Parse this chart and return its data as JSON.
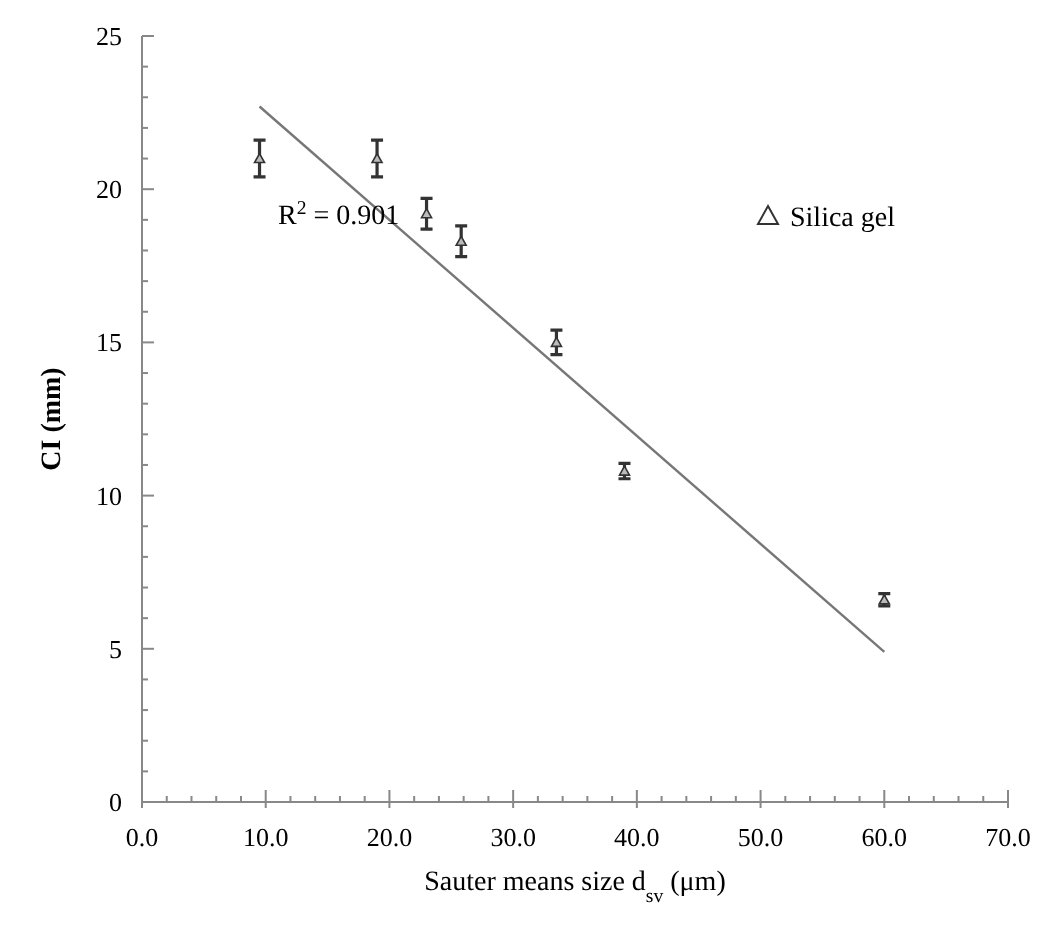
{
  "chart_data": {
    "type": "scatter",
    "xlabel": "Sauter means size d$_{sv}$ (μm)",
    "ylabel": "CI (mm)",
    "xlim": [
      0,
      70
    ],
    "ylim": [
      0,
      25
    ],
    "xticks": [
      {
        "value": 0,
        "label": "0.0"
      },
      {
        "value": 2,
        "label": null
      },
      {
        "value": 4,
        "label": null
      },
      {
        "value": 6,
        "label": null
      },
      {
        "value": 8,
        "label": null
      },
      {
        "value": 10,
        "label": "10.0"
      },
      {
        "value": 12,
        "label": null
      },
      {
        "value": 14,
        "label": null
      },
      {
        "value": 16,
        "label": null
      },
      {
        "value": 18,
        "label": null
      },
      {
        "value": 20,
        "label": "20.0"
      },
      {
        "value": 22,
        "label": null
      },
      {
        "value": 24,
        "label": null
      },
      {
        "value": 26,
        "label": null
      },
      {
        "value": 28,
        "label": null
      },
      {
        "value": 30,
        "label": "30.0"
      },
      {
        "value": 32,
        "label": null
      },
      {
        "value": 34,
        "label": null
      },
      {
        "value": 36,
        "label": null
      },
      {
        "value": 38,
        "label": null
      },
      {
        "value": 40,
        "label": "40.0"
      },
      {
        "value": 42,
        "label": null
      },
      {
        "value": 44,
        "label": null
      },
      {
        "value": 46,
        "label": null
      },
      {
        "value": 48,
        "label": null
      },
      {
        "value": 50,
        "label": "50.0"
      },
      {
        "value": 52,
        "label": null
      },
      {
        "value": 54,
        "label": null
      },
      {
        "value": 56,
        "label": null
      },
      {
        "value": 58,
        "label": null
      },
      {
        "value": 60,
        "label": "60.0"
      },
      {
        "value": 62,
        "label": null
      },
      {
        "value": 64,
        "label": null
      },
      {
        "value": 66,
        "label": null
      },
      {
        "value": 68,
        "label": null
      },
      {
        "value": 70,
        "label": "70.0"
      }
    ],
    "yticks": [
      0,
      {
        "value": 1,
        "label": null
      },
      {
        "value": 2,
        "label": null
      },
      {
        "value": 3,
        "label": null
      },
      {
        "value": 4,
        "label": null
      },
      5,
      {
        "value": 6,
        "label": null
      },
      {
        "value": 7,
        "label": null
      },
      {
        "value": 8,
        "label": null
      },
      {
        "value": 9,
        "label": null
      },
      10,
      {
        "value": 11,
        "label": null
      },
      {
        "value": 12,
        "label": null
      },
      {
        "value": 13,
        "label": null
      },
      {
        "value": 14,
        "label": null
      },
      15,
      {
        "value": 16,
        "label": null
      },
      {
        "value": 17,
        "label": null
      },
      {
        "value": 18,
        "label": null
      },
      {
        "value": 19,
        "label": null
      },
      20,
      {
        "value": 21,
        "label": null
      },
      {
        "value": 22,
        "label": null
      },
      {
        "value": 23,
        "label": null
      },
      {
        "value": 24,
        "label": null
      },
      25
    ],
    "grid": false,
    "legend": "top right",
    "series": [
      {
        "name": "Silica gel",
        "marker": "triangle",
        "color": "#333333",
        "x": [
          9.5,
          19,
          23,
          25.8,
          33.5,
          39,
          60
        ],
        "values": [
          21.0,
          21.0,
          19.2,
          18.3,
          15.0,
          10.8,
          6.6
        ],
        "errors": [
          0.6,
          0.6,
          0.5,
          0.5,
          0.4,
          0.25,
          0.2
        ]
      },
      {
        "type": "line",
        "marker": "none",
        "color": "#777777",
        "x": [
          9.5,
          60
        ],
        "values": [
          22.7,
          4.9
        ]
      }
    ],
    "annotations": [
      "R$^{2}$ = 0.901"
    ]
  }
}
